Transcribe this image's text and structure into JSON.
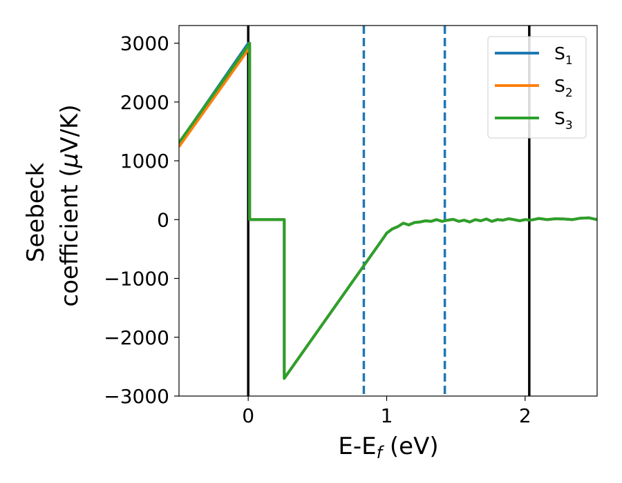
{
  "chart_data": {
    "type": "line",
    "xlabel": "E-E",
    "xlabel_sub": "f",
    "xlabel_unit": " (eV)",
    "ylabel_line1": "Seebeck",
    "ylabel_line2_pre": "coefficient  (",
    "ylabel_mu": "μ",
    "ylabel_line2_post": "V/K)",
    "xlim": [
      -0.5,
      2.52
    ],
    "ylim": [
      -3000,
      3300
    ],
    "xticks": [
      0,
      1,
      2
    ],
    "yticks": [
      -3000,
      -2000,
      -1000,
      0,
      1000,
      2000,
      3000
    ],
    "grid": false,
    "legend_position": "top-right",
    "series": [
      {
        "name": "S",
        "sub": "1",
        "color": "#1f77b4",
        "x": [
          -0.5,
          0.0,
          0.01,
          0.01,
          0.26,
          0.26,
          0.83,
          0.98,
          1.0,
          1.04,
          1.08,
          1.12,
          1.16,
          1.2,
          1.24,
          1.28,
          1.32,
          1.36,
          1.4,
          1.44,
          1.48,
          1.52,
          1.56,
          1.6,
          1.64,
          1.68,
          1.72,
          1.76,
          1.8,
          1.84,
          1.88,
          1.92,
          1.96,
          2.0,
          2.04,
          2.1,
          2.16,
          2.22,
          2.28,
          2.34,
          2.4,
          2.46,
          2.52
        ],
        "y": [
          1300,
          3000,
          3000,
          0,
          0,
          -2700,
          -800,
          -300,
          -230,
          -160,
          -120,
          -60,
          -90,
          -50,
          -40,
          -20,
          -30,
          0,
          -30,
          -10,
          5,
          -30,
          -10,
          -40,
          0,
          -20,
          10,
          -30,
          0,
          -10,
          15,
          0,
          -20,
          0,
          -10,
          20,
          0,
          15,
          10,
          0,
          25,
          30,
          0
        ]
      },
      {
        "name": "S",
        "sub": "2",
        "color": "#ff7f0e",
        "x": [
          -0.5,
          0.0,
          0.01,
          0.01,
          0.26,
          0.26,
          0.83,
          0.98,
          1.0,
          1.04,
          1.08,
          1.12,
          1.16,
          1.2,
          1.24,
          1.28,
          1.32,
          1.36,
          1.4,
          1.44,
          1.48,
          1.52,
          1.56,
          1.6,
          1.64,
          1.68,
          1.72,
          1.76,
          1.8,
          1.84,
          1.88,
          1.92,
          1.96,
          2.0,
          2.04,
          2.1,
          2.16,
          2.22,
          2.28,
          2.34,
          2.4,
          2.46,
          2.52
        ],
        "y": [
          1240,
          2890,
          3000,
          0,
          0,
          -2700,
          -800,
          -300,
          -230,
          -160,
          -120,
          -60,
          -90,
          -50,
          -40,
          -20,
          -30,
          0,
          -30,
          -10,
          5,
          -30,
          -10,
          -40,
          0,
          -20,
          10,
          -30,
          0,
          -10,
          15,
          0,
          -20,
          0,
          -10,
          20,
          0,
          15,
          10,
          0,
          25,
          30,
          0
        ]
      },
      {
        "name": "S",
        "sub": "3",
        "color": "#2ca02c",
        "x": [
          -0.5,
          0.0,
          0.01,
          0.01,
          0.26,
          0.26,
          0.83,
          0.98,
          1.0,
          1.04,
          1.08,
          1.12,
          1.16,
          1.2,
          1.24,
          1.28,
          1.32,
          1.36,
          1.4,
          1.44,
          1.48,
          1.52,
          1.56,
          1.6,
          1.64,
          1.68,
          1.72,
          1.76,
          1.8,
          1.84,
          1.88,
          1.92,
          1.96,
          2.0,
          2.04,
          2.1,
          2.16,
          2.22,
          2.28,
          2.34,
          2.4,
          2.46,
          2.52
        ],
        "y": [
          1310,
          2960,
          3000,
          0,
          0,
          -2700,
          -800,
          -300,
          -230,
          -160,
          -120,
          -60,
          -90,
          -50,
          -40,
          -20,
          -30,
          0,
          -30,
          -10,
          5,
          -30,
          -10,
          -40,
          0,
          -20,
          10,
          -30,
          0,
          -10,
          15,
          0,
          -20,
          0,
          -10,
          20,
          0,
          15,
          10,
          0,
          25,
          30,
          0
        ]
      }
    ],
    "vlines": [
      {
        "x": 0.0,
        "style": "solid",
        "color": "#000000"
      },
      {
        "x": 2.03,
        "style": "solid",
        "color": "#000000"
      },
      {
        "x": 0.835,
        "style": "dashed",
        "color": "#1f77b4"
      },
      {
        "x": 1.42,
        "style": "dashed",
        "color": "#1f77b4"
      }
    ]
  }
}
